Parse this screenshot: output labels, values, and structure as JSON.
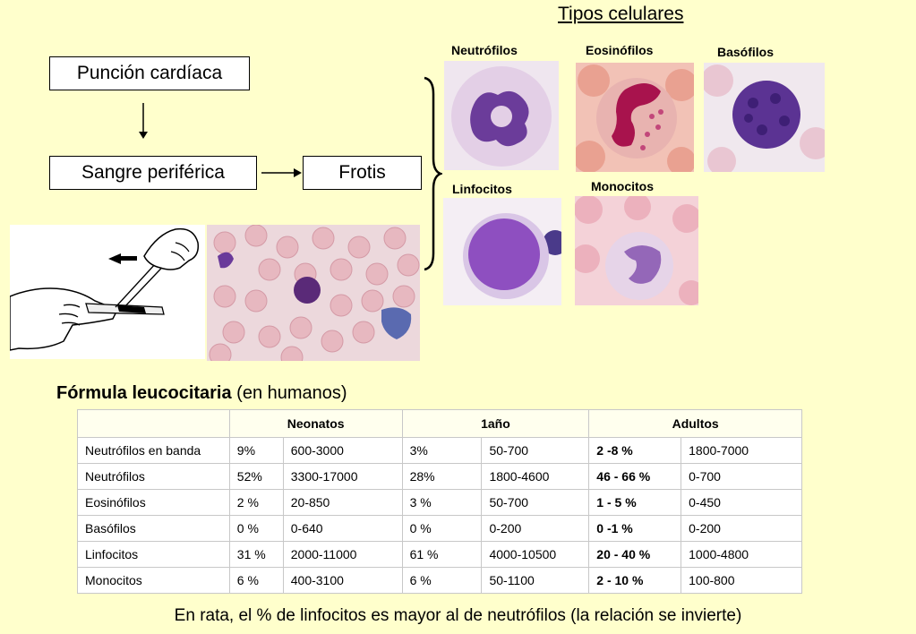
{
  "title": "Tipos celulares",
  "flow": {
    "step1": "Punción cardíaca",
    "step2": "Sangre periférica",
    "step3": "Frotis"
  },
  "cells": {
    "neutrofilos": "Neutrófilos",
    "eosinofilos": "Eosinófilos",
    "basofilos": "Basófilos",
    "linfocitos": "Linfocitos",
    "monocitos": "Monocitos"
  },
  "formula": {
    "title_bold": "Fórmula leucocitaria",
    "title_rest": " (en humanos)"
  },
  "table": {
    "headers": [
      "Neonatos",
      "1año",
      "Adultos"
    ],
    "rows": [
      [
        "Neutrófilos en banda",
        "9%",
        "600-3000",
        "3%",
        "50-700",
        "2 -8 %",
        "1800-7000"
      ],
      [
        "Neutrófilos",
        "52%",
        "3300-17000",
        "28%",
        "1800-4600",
        "46 - 66 %",
        "0-700"
      ],
      [
        "Eosinófilos",
        "2 %",
        "20-850",
        "3 %",
        "50-700",
        "1 - 5 %",
        "0-450"
      ],
      [
        "Basófilos",
        "0 %",
        "0-640",
        "0 %",
        "0-200",
        "0 -1 %",
        "0-200"
      ],
      [
        "Linfocitos",
        "31 %",
        "2000-11000",
        "61 %",
        "4000-10500",
        "20 - 40 %",
        "1000-4800"
      ],
      [
        "Monocitos",
        "6 %",
        "400-3100",
        "6 %",
        "50-1100",
        "2 - 10 %",
        "100-800"
      ]
    ]
  },
  "footnote": "En rata, el % de linfocitos es mayor al de neutrófilos (la relación se invierte)"
}
